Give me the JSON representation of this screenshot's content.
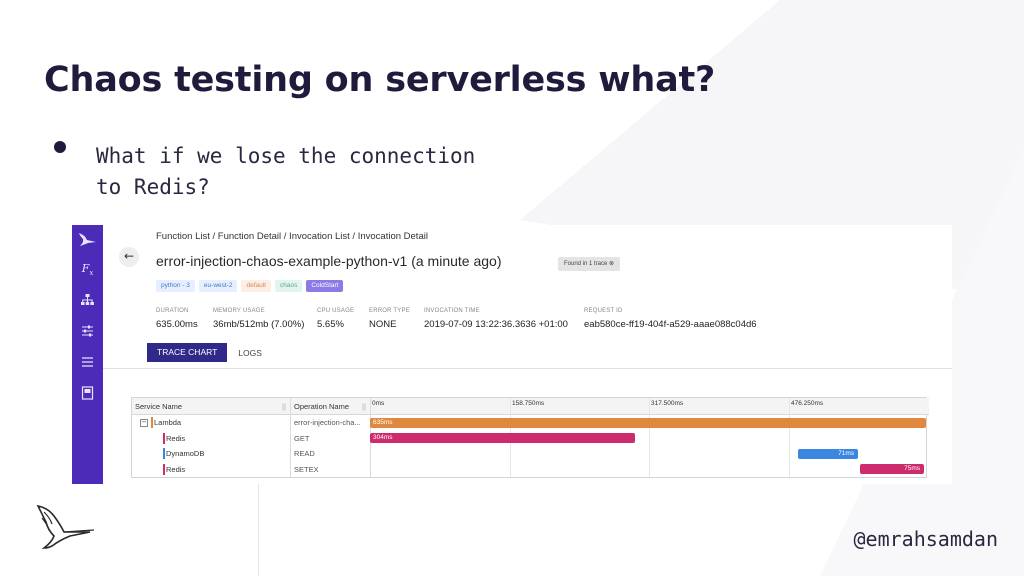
{
  "slide": {
    "title": "Chaos testing on serverless what?",
    "bullet_lines": [
      "What if we lose the connection",
      "to Redis?"
    ],
    "handle": "@emrahsamdan"
  },
  "app": {
    "breadcrumb": "Function List / Function Detail / Invocation List / Invocation Detail",
    "title": "error-injection-chaos-example-python-v1 (a minute ago)",
    "found_badge": "Found in 1 trace",
    "tags": [
      {
        "label": "python - 3",
        "bg": "#e6efff",
        "fg": "#4a78c8"
      },
      {
        "label": "eu-west-2",
        "bg": "#e6efff",
        "fg": "#4a78c8"
      },
      {
        "label": "default",
        "bg": "#fdeee3",
        "fg": "#d4875a"
      },
      {
        "label": "chaos",
        "bg": "#e1f5ee",
        "fg": "#5aa88a"
      },
      {
        "label": "ColdStart",
        "bg": "#8c7ae6",
        "fg": "#ffffff"
      }
    ],
    "meta": [
      {
        "label": "DURATION",
        "value": "635.00ms"
      },
      {
        "label": "MEMORY USAGE",
        "value": "36mb/512mb (7.00%)"
      },
      {
        "label": "CPU USAGE",
        "value": "5.65%"
      },
      {
        "label": "ERROR TYPE",
        "value": "NONE"
      },
      {
        "label": "INVOCATION TIME",
        "value": "2019-07-09 13:22:36.3636 +01:00"
      },
      {
        "label": "REQUEST ID",
        "value": "eab580ce-ff19-404f-a529-aaae088c04d6"
      }
    ],
    "tabs": {
      "active": "TRACE CHART",
      "other": "LOGS"
    },
    "trace": {
      "col_service": "Service Name",
      "col_operation": "Operation Name",
      "ticks": [
        "0ms",
        "158.750ms",
        "317.500ms",
        "476.250ms"
      ],
      "total_ms": 635,
      "rows": [
        {
          "service": "Lambda",
          "operation": "error-injection-cha...",
          "start_ms": 0,
          "duration_ms": 635,
          "label": "635ms",
          "color": "#e0883f",
          "expandable": true
        },
        {
          "service": "Redis",
          "operation": "GET",
          "start_ms": 0,
          "duration_ms": 304,
          "label": "304ms",
          "color": "#cc2c6c",
          "expandable": false
        },
        {
          "service": "DynamoDB",
          "operation": "READ",
          "start_ms": 487,
          "duration_ms": 71,
          "label": "71ms",
          "color": "#3b86e0",
          "expandable": false
        },
        {
          "service": "Redis",
          "operation": "SETEX",
          "start_ms": 558,
          "duration_ms": 75,
          "label": "75ms",
          "color": "#cc2c6c",
          "expandable": false
        }
      ]
    }
  },
  "colors": {
    "sidebar": "#4b2bb7",
    "accent_tab": "#2f2a8a",
    "title": "#1e1b3c"
  },
  "icons": [
    "bird-logo-icon",
    "function-icon",
    "sitemap-icon",
    "sliders-icon",
    "list-icon",
    "book-icon",
    "back-arrow-icon"
  ]
}
